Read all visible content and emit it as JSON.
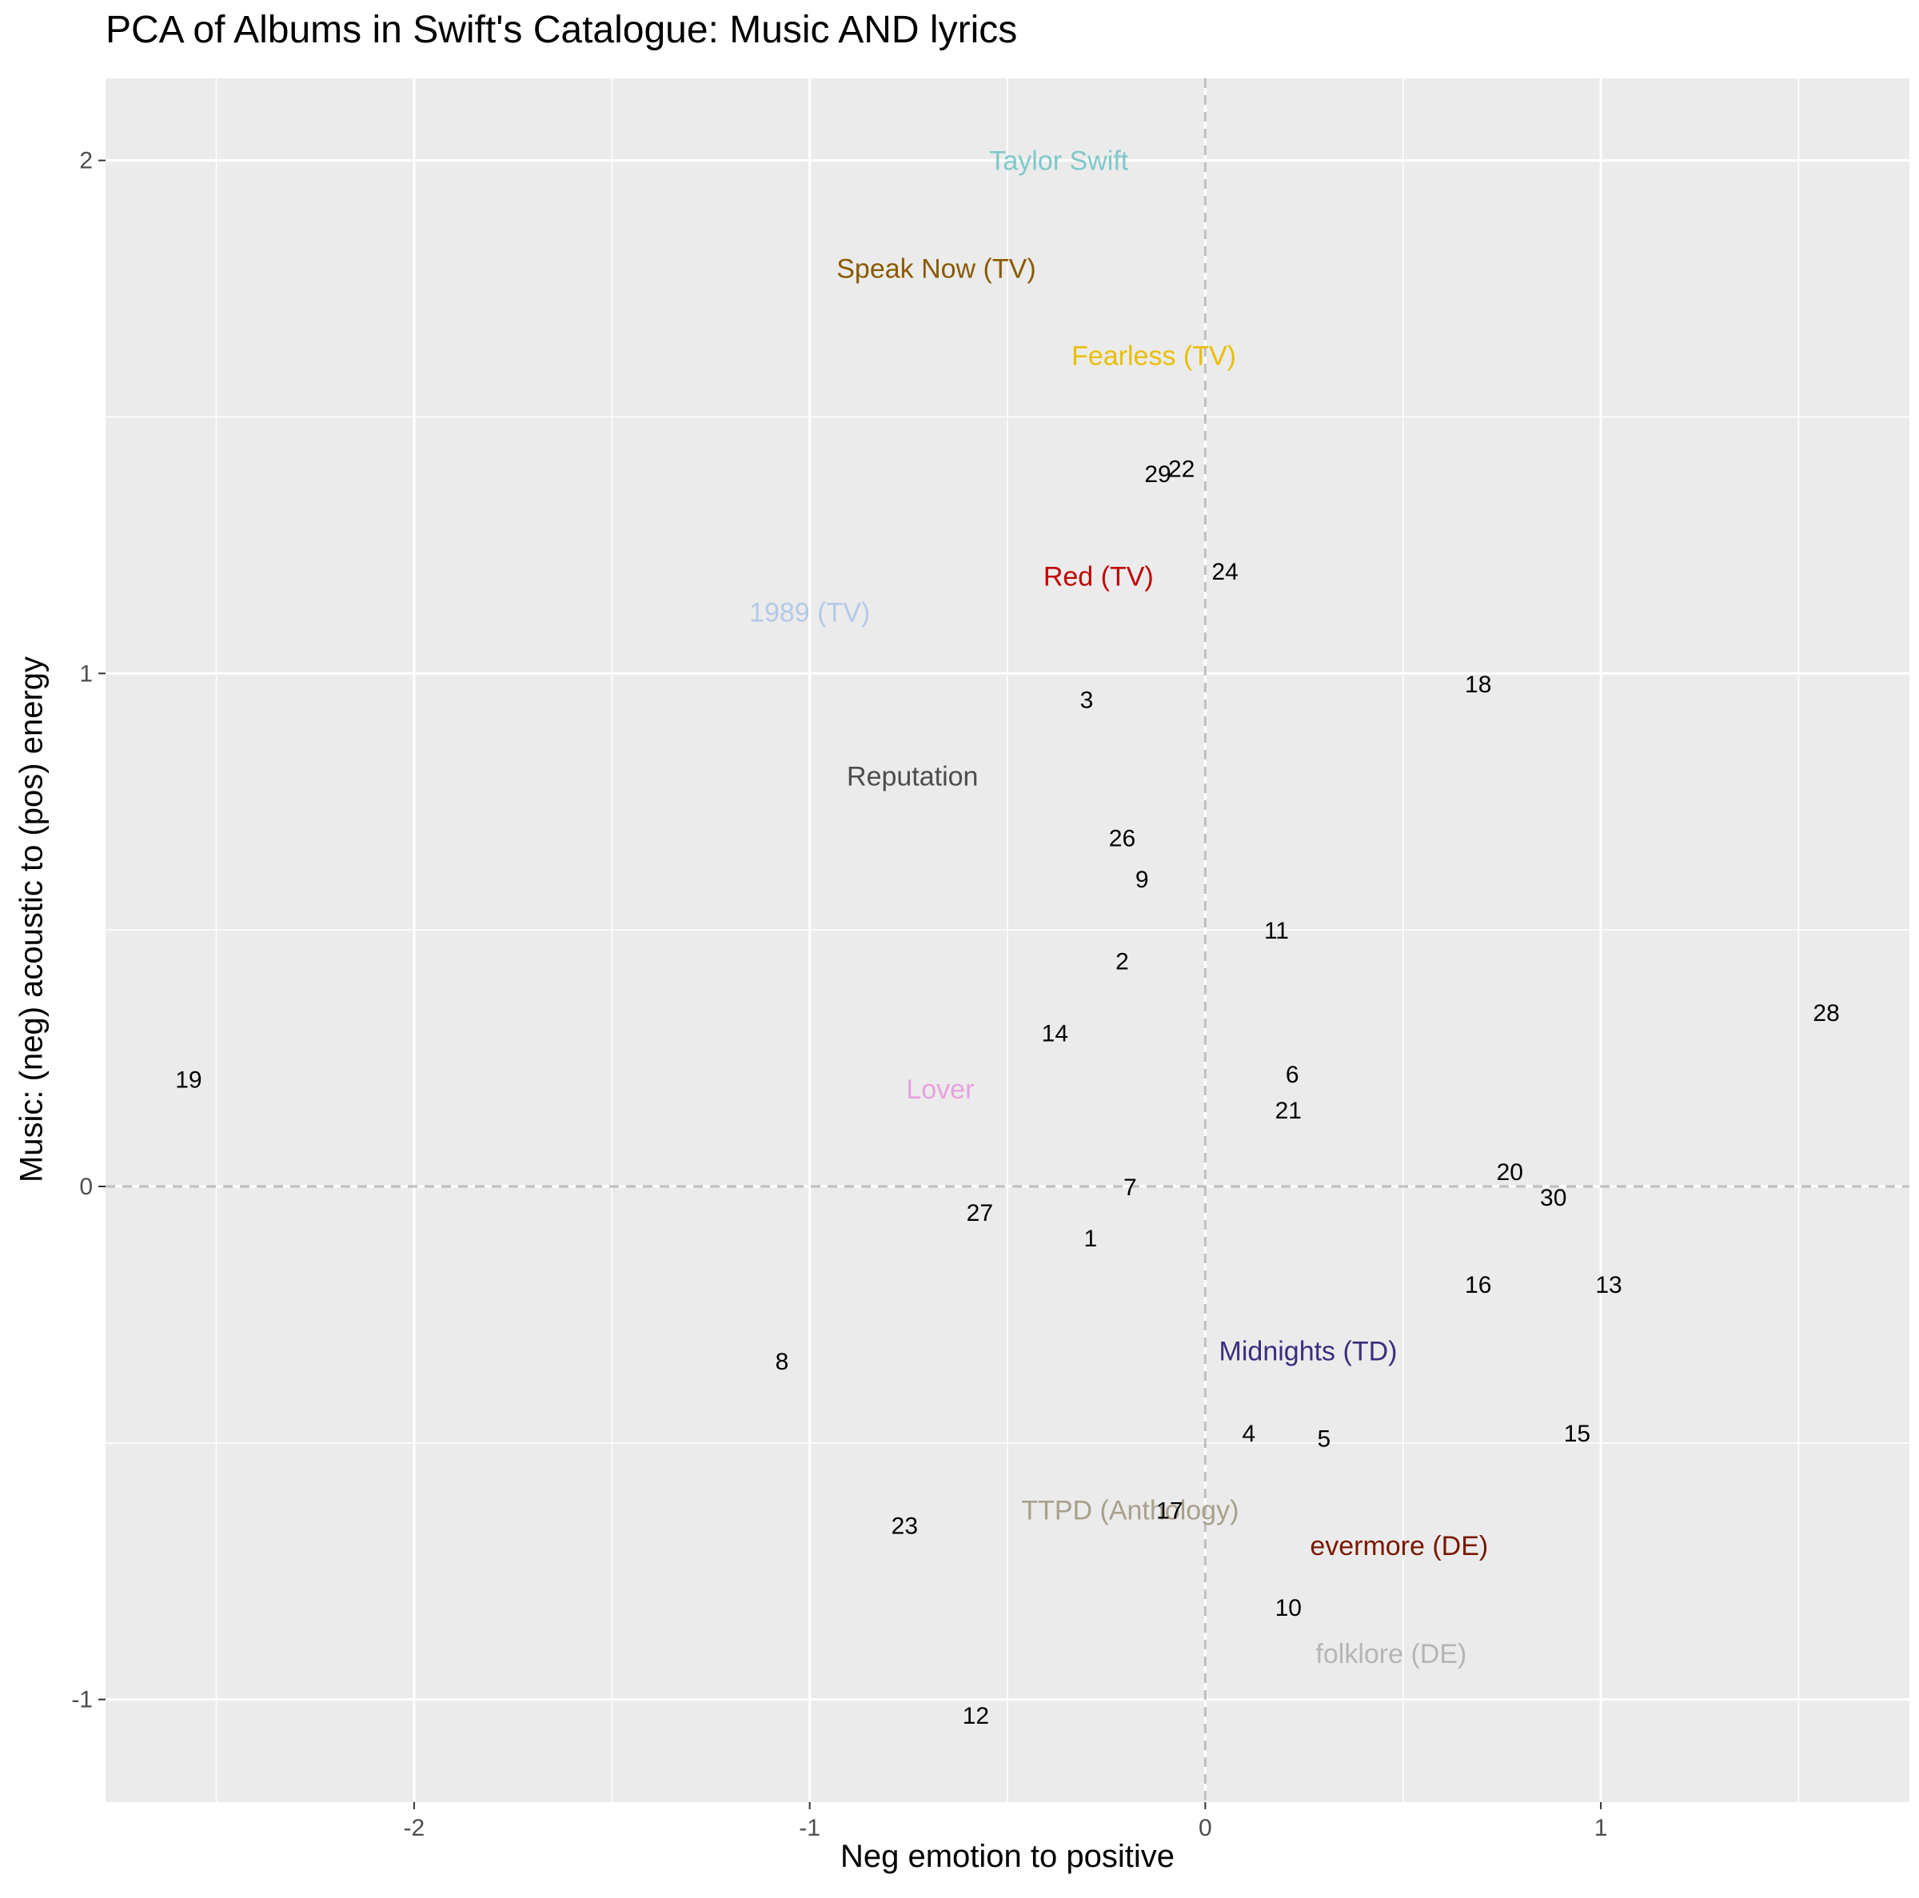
{
  "chart_data": {
    "type": "scatter",
    "title": "PCA of Albums in Swift's Catalogue: Music AND lyrics",
    "xlabel": "Neg emotion to positive",
    "ylabel": "Music: (neg) acoustic to (pos) energy",
    "xlim": [
      -2.78,
      1.78
    ],
    "ylim": [
      -1.2,
      2.16
    ],
    "x_ticks": [
      -2,
      -1,
      0,
      1
    ],
    "y_ticks": [
      -1,
      0,
      1,
      2
    ],
    "grid": true,
    "reference_lines": {
      "x": 0,
      "y": 0,
      "style": "dashed"
    },
    "colors": {
      "panel": "#EBEBEB",
      "grid": "#FFFFFF",
      "reference": "#BEBEBE",
      "point_label": "#000000",
      "axis_text": "#4D4D4D"
    },
    "points": [
      {
        "label": "1",
        "x": -0.29,
        "y": -0.1
      },
      {
        "label": "2",
        "x": -0.21,
        "y": 0.44
      },
      {
        "label": "3",
        "x": -0.3,
        "y": 0.95
      },
      {
        "label": "4",
        "x": 0.11,
        "y": -0.48
      },
      {
        "label": "5",
        "x": 0.3,
        "y": -0.49
      },
      {
        "label": "6",
        "x": 0.22,
        "y": 0.22
      },
      {
        "label": "7",
        "x": -0.19,
        "y": 0.0
      },
      {
        "label": "8",
        "x": -1.07,
        "y": -0.34
      },
      {
        "label": "9",
        "x": -0.16,
        "y": 0.6
      },
      {
        "label": "10",
        "x": 0.21,
        "y": -0.82
      },
      {
        "label": "11",
        "x": 0.18,
        "y": 0.5
      },
      {
        "label": "12",
        "x": -0.58,
        "y": -1.03
      },
      {
        "label": "13",
        "x": 1.02,
        "y": -0.19
      },
      {
        "label": "14",
        "x": -0.38,
        "y": 0.3
      },
      {
        "label": "15",
        "x": 0.94,
        "y": -0.48
      },
      {
        "label": "16",
        "x": 0.69,
        "y": -0.19
      },
      {
        "label": "17",
        "x": -0.09,
        "y": -0.63
      },
      {
        "label": "18",
        "x": 0.69,
        "y": 0.98
      },
      {
        "label": "19",
        "x": -2.57,
        "y": 0.21
      },
      {
        "label": "20",
        "x": 0.77,
        "y": 0.03
      },
      {
        "label": "21",
        "x": 0.21,
        "y": 0.15
      },
      {
        "label": "22",
        "x": -0.06,
        "y": 1.4
      },
      {
        "label": "23",
        "x": -0.76,
        "y": -0.66
      },
      {
        "label": "24",
        "x": 0.05,
        "y": 1.2
      },
      {
        "label": "26",
        "x": -0.21,
        "y": 0.68
      },
      {
        "label": "27",
        "x": -0.57,
        "y": -0.05
      },
      {
        "label": "28",
        "x": 1.57,
        "y": 0.34
      },
      {
        "label": "29",
        "x": -0.12,
        "y": 1.39
      },
      {
        "label": "30",
        "x": 0.88,
        "y": -0.02
      }
    ],
    "album_labels": [
      {
        "label": "Taylor Swift",
        "x": -0.37,
        "y": 2.0,
        "color": "#7FC8C8"
      },
      {
        "label": "Speak Now (TV)",
        "x": -0.68,
        "y": 1.79,
        "color": "#8A5A00"
      },
      {
        "label": "Fearless (TV)",
        "x": -0.13,
        "y": 1.62,
        "color": "#E8BF00"
      },
      {
        "label": "Red (TV)",
        "x": -0.27,
        "y": 1.19,
        "color": "#C00000"
      },
      {
        "label": "1989 (TV)",
        "x": -1.0,
        "y": 1.12,
        "color": "#B3C9E8"
      },
      {
        "label": "Reputation",
        "x": -0.74,
        "y": 0.8,
        "color": "#4D4D4D"
      },
      {
        "label": "Lover",
        "x": -0.67,
        "y": 0.19,
        "color": "#E8A0E0"
      },
      {
        "label": "Midnights (TD)",
        "x": 0.26,
        "y": -0.32,
        "color": "#3B2E7E"
      },
      {
        "label": "TTPD (Anthology)",
        "x": -0.19,
        "y": -0.63,
        "color": "#A89F8C"
      },
      {
        "label": "evermore (DE)",
        "x": 0.49,
        "y": -0.7,
        "color": "#7A1800"
      },
      {
        "label": "folklore (DE)",
        "x": 0.47,
        "y": -0.91,
        "color": "#B5B5B5"
      }
    ]
  }
}
